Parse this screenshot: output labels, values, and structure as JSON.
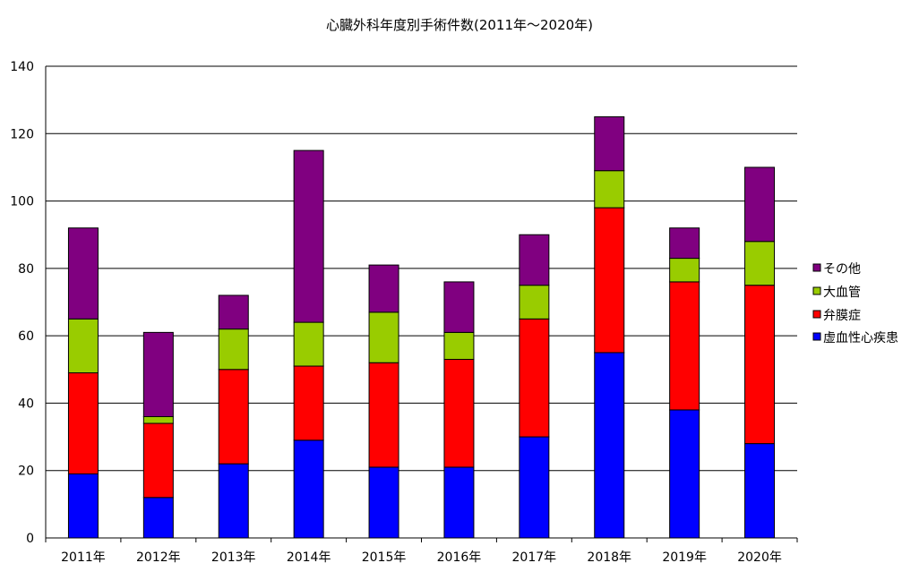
{
  "chart_data": {
    "type": "bar",
    "stacked": true,
    "title": "心臓外科年度別手術件数(2011年〜2020年)",
    "xlabel": "",
    "ylabel": "",
    "ylim": [
      0,
      140
    ],
    "yticks": [
      0,
      20,
      40,
      60,
      80,
      100,
      120,
      140
    ],
    "grid": true,
    "legend_position": "right",
    "categories": [
      "2011年",
      "2012年",
      "2013年",
      "2014年",
      "2015年",
      "2016年",
      "2017年",
      "2018年",
      "2019年",
      "2020年"
    ],
    "series": [
      {
        "name": "虚血性心疾患",
        "color": "#0000ff",
        "values": [
          19,
          12,
          22,
          29,
          21,
          21,
          30,
          55,
          38,
          28
        ]
      },
      {
        "name": "弁膜症",
        "color": "#ff0000",
        "values": [
          30,
          22,
          28,
          22,
          31,
          32,
          35,
          43,
          38,
          47
        ]
      },
      {
        "name": "大血管",
        "color": "#99cc00",
        "values": [
          16,
          2,
          12,
          13,
          15,
          8,
          10,
          11,
          7,
          13
        ]
      },
      {
        "name": "その他",
        "color": "#800080",
        "values": [
          27,
          25,
          10,
          51,
          14,
          15,
          15,
          16,
          9,
          22
        ]
      }
    ],
    "legend_order": [
      "その他",
      "大血管",
      "弁膜症",
      "虚血性心疾患"
    ]
  }
}
